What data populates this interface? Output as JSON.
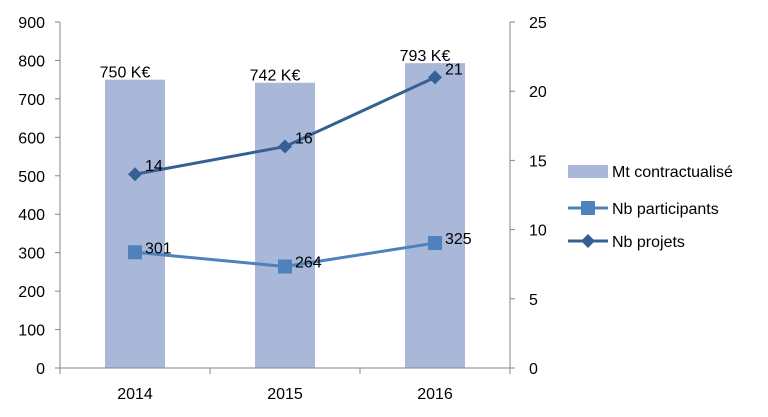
{
  "chart_data": {
    "type": "bar",
    "categories": [
      "2014",
      "2015",
      "2016"
    ],
    "y_left": {
      "min": 0,
      "max": 900,
      "step": 100,
      "ticks": [
        "0",
        "100",
        "200",
        "300",
        "400",
        "500",
        "600",
        "700",
        "800",
        "900"
      ]
    },
    "y_right": {
      "min": 0,
      "max": 25,
      "step": 5,
      "ticks": [
        "0",
        "5",
        "10",
        "15",
        "20",
        "25"
      ]
    },
    "grid": false,
    "legend_position": "right",
    "series": [
      {
        "name": "Mt contractualisé",
        "type": "bar",
        "axis": "left",
        "color": "#a9b8d9",
        "values": [
          750,
          742,
          793
        ],
        "labels": [
          "750 K€",
          "742 K€",
          "793 K€"
        ]
      },
      {
        "name": "Nb participants",
        "type": "line",
        "axis": "left",
        "marker": "square",
        "color": "#4f81bd",
        "values": [
          301,
          264,
          325
        ],
        "labels": [
          "301",
          "264",
          "325"
        ]
      },
      {
        "name": "Nb projets",
        "type": "line",
        "axis": "right",
        "marker": "diamond",
        "color": "#376092",
        "values": [
          14,
          16,
          21
        ],
        "labels": [
          "14",
          "16",
          "21"
        ]
      }
    ]
  }
}
